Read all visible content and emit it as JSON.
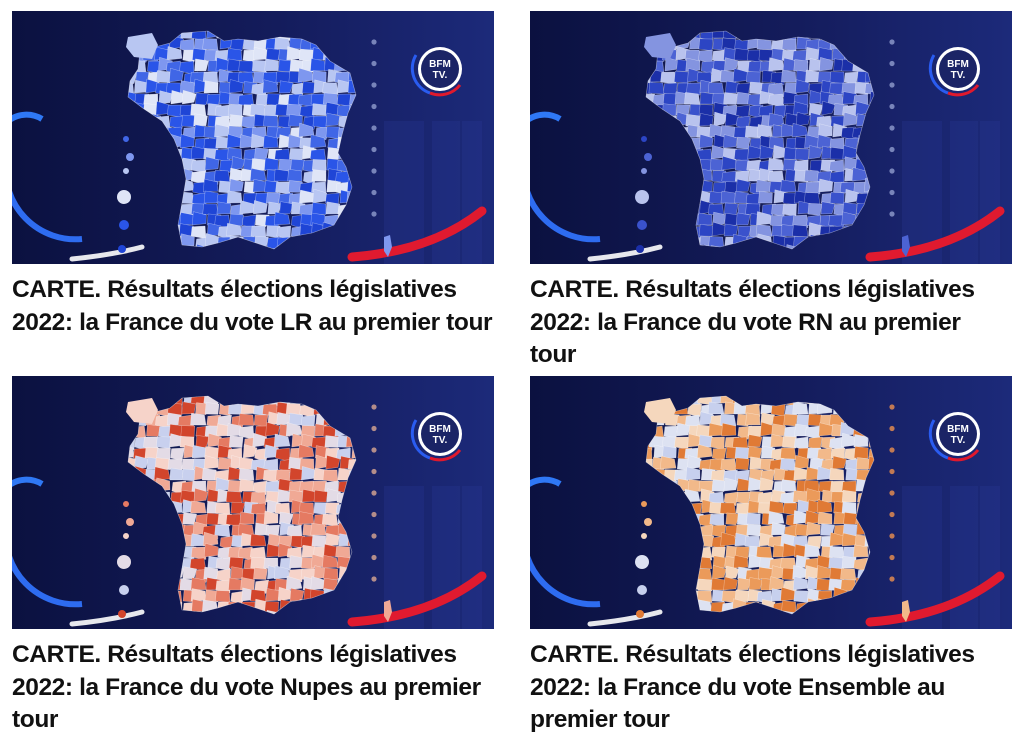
{
  "articles": [
    {
      "title": "CARTE. Résultats élections législatives 2022: la France du vote LR au premier tour",
      "logo_text": [
        "BFM",
        "TV."
      ],
      "palette": [
        "#1f45d6",
        "#4066e6",
        "#7e97ef",
        "#b8c6f2",
        "#dfe5f7",
        "#2a55e8"
      ],
      "dot_color": "#8a95c8"
    },
    {
      "title": "CARTE. Résultats élections législatives 2022: la France du vote RN au premier tour",
      "logo_text": [
        "BFM",
        "TV."
      ],
      "palette": [
        "#1b2fa8",
        "#2c45c4",
        "#4c63d4",
        "#8494e0",
        "#b9c3ee",
        "#3a52cc"
      ],
      "dot_color": "#8a95c8"
    },
    {
      "title": "CARTE. Résultats élections législatives 2022: la France du vote Nupes au premier tour",
      "logo_text": [
        "BFM",
        "TV."
      ],
      "palette": [
        "#d2452c",
        "#e57a62",
        "#f0a995",
        "#f6d3c9",
        "#e3dbe6",
        "#c8d0ee"
      ],
      "dot_color": "#d0a090"
    },
    {
      "title": "CARTE. Résultats élections législatives 2022: la France du vote Ensemble au premier tour",
      "logo_text": [
        "BFM",
        "TV."
      ],
      "palette": [
        "#e07a35",
        "#eb9a5a",
        "#f2b98a",
        "#f5d7bd",
        "#dde2f2",
        "#c7d0ee"
      ],
      "dot_color": "#e08a50"
    }
  ]
}
